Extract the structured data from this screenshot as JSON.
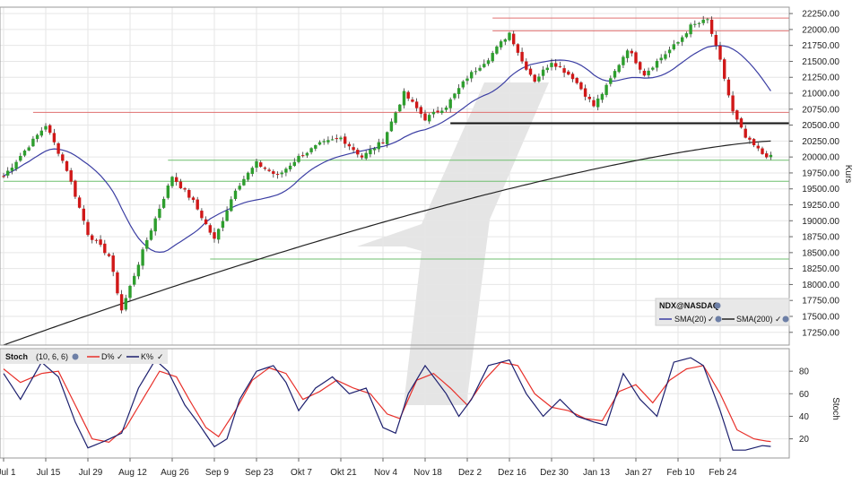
{
  "chart_data": [
    {
      "type": "candlestick",
      "symbol_label": "NDX@NASDAQ",
      "ylabel": "Kurs",
      "ylim": [
        17050,
        22350
      ],
      "y_ticks": [
        17250,
        17500,
        17750,
        18000,
        18250,
        18500,
        18750,
        19000,
        19250,
        19500,
        19750,
        20000,
        20250,
        20500,
        20750,
        21000,
        21250,
        21500,
        21750,
        22000,
        22250
      ],
      "y_tick_labels": [
        "17250.00",
        "17500.00",
        "17750.00",
        "18000.00",
        "18250.00",
        "18500.00",
        "18750.00",
        "19000.00",
        "19250.00",
        "19500.00",
        "19750.00",
        "20000.00",
        "20250.00",
        "20500.00",
        "20750.00",
        "21000.00",
        "21250.00",
        "21500.00",
        "21750.00",
        "22000.00",
        "22250.00"
      ],
      "x_tick_labels": [
        "Jul 1",
        "Jul 15",
        "Jul 29",
        "Aug 12",
        "Aug 26",
        "Sep 9",
        "Sep 23",
        "Okt 7",
        "Okt 21",
        "Nov 4",
        "Nov 18",
        "Dez 2",
        "Dez 16",
        "Dez 30",
        "Jan 13",
        "Jan 27",
        "Feb 10",
        "Feb 24"
      ],
      "x_tick_index": [
        0,
        10,
        20,
        30,
        40,
        50,
        60,
        70,
        80,
        90,
        100,
        110,
        120,
        130,
        140,
        150,
        160,
        170
      ],
      "n_bars": 183,
      "close_keypoints": [
        [
          0,
          19700
        ],
        [
          10,
          20500
        ],
        [
          15,
          19800
        ],
        [
          20,
          18800
        ],
        [
          25,
          18450
        ],
        [
          28,
          17600
        ],
        [
          34,
          18700
        ],
        [
          40,
          19700
        ],
        [
          45,
          19300
        ],
        [
          50,
          18700
        ],
        [
          55,
          19500
        ],
        [
          60,
          19900
        ],
        [
          65,
          19700
        ],
        [
          70,
          20000
        ],
        [
          75,
          20200
        ],
        [
          80,
          20300
        ],
        [
          85,
          20000
        ],
        [
          90,
          20250
        ],
        [
          95,
          21000
        ],
        [
          100,
          20600
        ],
        [
          105,
          20800
        ],
        [
          110,
          21250
        ],
        [
          115,
          21550
        ],
        [
          120,
          21950
        ],
        [
          123,
          21500
        ],
        [
          126,
          21200
        ],
        [
          130,
          21500
        ],
        [
          135,
          21250
        ],
        [
          140,
          20800
        ],
        [
          143,
          21100
        ],
        [
          148,
          21700
        ],
        [
          152,
          21300
        ],
        [
          155,
          21500
        ],
        [
          160,
          21800
        ],
        [
          163,
          22050
        ],
        [
          167,
          22150
        ],
        [
          170,
          21500
        ],
        [
          173,
          20700
        ],
        [
          176,
          20300
        ],
        [
          180,
          20050
        ],
        [
          182,
          20000
        ]
      ],
      "sma_labels": [
        "SMA(20)",
        "SMA(200)"
      ],
      "sma_colors": [
        "#3b3ea3",
        "#222222"
      ],
      "sma200_start": 17050,
      "sma200_end": 20250,
      "resistance_lines": [
        {
          "value": 22180,
          "start_index": 116
        },
        {
          "value": 21980,
          "start_index": 116
        },
        {
          "value": 20700,
          "start_index": 7
        }
      ],
      "black_support": {
        "value": 20530,
        "start_index": 106
      },
      "support_lines": [
        {
          "value": 19950,
          "start_index": 39
        },
        {
          "value": 19620,
          "start_index": 0
        },
        {
          "value": 18400,
          "start_index": 49
        }
      ],
      "up_color": "#2e9e2e",
      "down_color": "#d01818"
    },
    {
      "type": "line",
      "indicator_label": "Stoch",
      "params": "(10, 6, 6)",
      "ylabel": "Stoch",
      "ylim": [
        3,
        100
      ],
      "y_ticks": [
        20,
        40,
        60,
        80
      ],
      "series": [
        {
          "name": "D%",
          "color": "#e8302a"
        },
        {
          "name": "K%",
          "color": "#1c1f6e"
        }
      ],
      "k_keypoints": [
        [
          0,
          78
        ],
        [
          4,
          55
        ],
        [
          9,
          88
        ],
        [
          13,
          75
        ],
        [
          17,
          35
        ],
        [
          20,
          12
        ],
        [
          24,
          18
        ],
        [
          28,
          25
        ],
        [
          32,
          65
        ],
        [
          36,
          90
        ],
        [
          39,
          80
        ],
        [
          43,
          50
        ],
        [
          46,
          35
        ],
        [
          50,
          13
        ],
        [
          53,
          20
        ],
        [
          56,
          55
        ],
        [
          60,
          80
        ],
        [
          64,
          85
        ],
        [
          67,
          70
        ],
        [
          70,
          45
        ],
        [
          74,
          65
        ],
        [
          78,
          75
        ],
        [
          82,
          60
        ],
        [
          86,
          65
        ],
        [
          90,
          30
        ],
        [
          93,
          25
        ],
        [
          96,
          60
        ],
        [
          100,
          85
        ],
        [
          105,
          60
        ],
        [
          108,
          40
        ],
        [
          111,
          55
        ],
        [
          115,
          85
        ],
        [
          120,
          90
        ],
        [
          124,
          60
        ],
        [
          128,
          40
        ],
        [
          132,
          55
        ],
        [
          136,
          40
        ],
        [
          140,
          35
        ],
        [
          143,
          32
        ],
        [
          147,
          78
        ],
        [
          151,
          55
        ],
        [
          155,
          40
        ],
        [
          159,
          88
        ],
        [
          163,
          92
        ],
        [
          166,
          85
        ],
        [
          170,
          45
        ],
        [
          173,
          10
        ],
        [
          176,
          10
        ],
        [
          180,
          14
        ]
      ],
      "d_keypoints": [
        [
          0,
          82
        ],
        [
          4,
          70
        ],
        [
          9,
          78
        ],
        [
          13,
          80
        ],
        [
          17,
          50
        ],
        [
          21,
          20
        ],
        [
          25,
          17
        ],
        [
          29,
          30
        ],
        [
          33,
          55
        ],
        [
          37,
          80
        ],
        [
          41,
          75
        ],
        [
          44,
          55
        ],
        [
          48,
          30
        ],
        [
          51,
          22
        ],
        [
          55,
          45
        ],
        [
          59,
          72
        ],
        [
          63,
          83
        ],
        [
          67,
          78
        ],
        [
          71,
          55
        ],
        [
          75,
          62
        ],
        [
          79,
          72
        ],
        [
          83,
          65
        ],
        [
          87,
          60
        ],
        [
          91,
          42
        ],
        [
          94,
          38
        ],
        [
          98,
          72
        ],
        [
          102,
          78
        ],
        [
          106,
          65
        ],
        [
          110,
          50
        ],
        [
          114,
          72
        ],
        [
          118,
          88
        ],
        [
          122,
          85
        ],
        [
          126,
          60
        ],
        [
          130,
          48
        ],
        [
          134,
          45
        ],
        [
          138,
          38
        ],
        [
          142,
          36
        ],
        [
          146,
          62
        ],
        [
          150,
          68
        ],
        [
          154,
          52
        ],
        [
          158,
          72
        ],
        [
          162,
          82
        ],
        [
          166,
          85
        ],
        [
          170,
          60
        ],
        [
          174,
          28
        ],
        [
          178,
          20
        ],
        [
          181,
          18
        ]
      ]
    }
  ]
}
